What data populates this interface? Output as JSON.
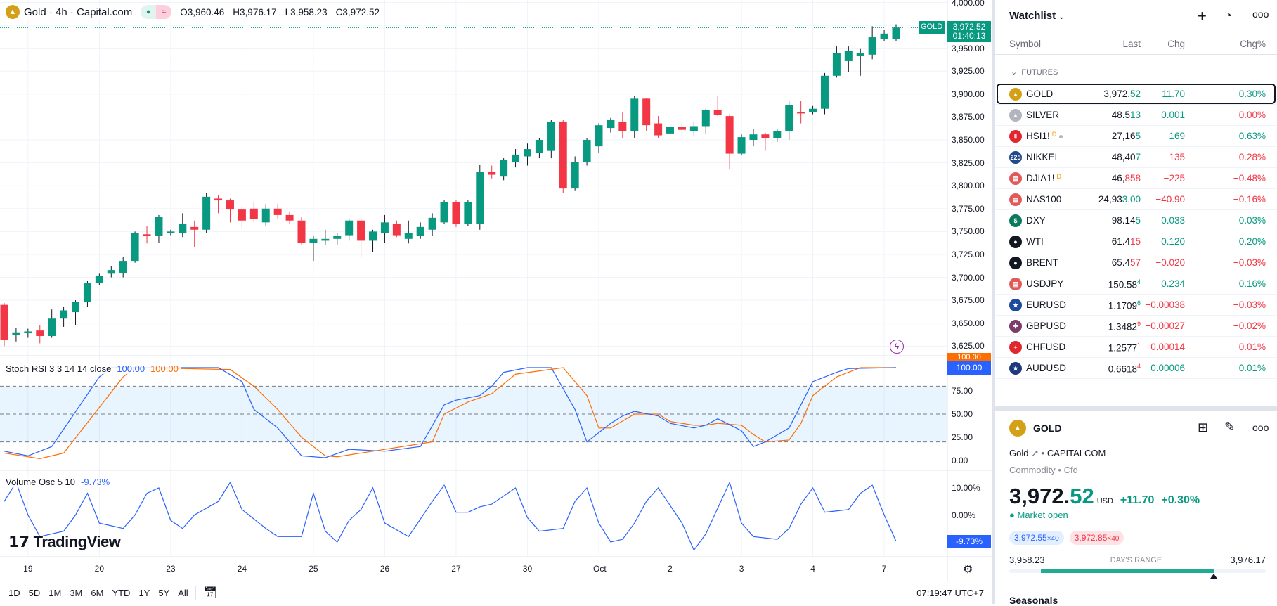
{
  "legend": {
    "symbol": "Gold · 4h · Capital.com",
    "open": "O3,960.46",
    "high": "H3,976.17",
    "low": "L3,958.23",
    "close": "C3,972.52"
  },
  "price_axis": [
    "4,000.00",
    "3,975.00",
    "3,950.00",
    "3,925.00",
    "3,900.00",
    "3,875.00",
    "3,850.00",
    "3,825.00",
    "3,800.00",
    "3,775.00",
    "3,750.00",
    "3,725.00",
    "3,700.00",
    "3,675.00",
    "3,650.00",
    "3,625.00"
  ],
  "last_tag": {
    "symbol": "GOLD",
    "price": "3,972.52",
    "countdown": "01:40:13"
  },
  "stoch": {
    "title": "Stoch RSI 3 3 14 14 close",
    "k_value": "100.00",
    "d_value": "100.00",
    "axis": [
      "75.00",
      "50.00",
      "25.00",
      "0.00"
    ],
    "tag_k": "100.00",
    "tag_d": "100.00"
  },
  "volosc": {
    "title": "Volume Osc 5 10",
    "value": "-9.73%",
    "axis": [
      "10.00%",
      "0.00%"
    ],
    "tag": "-9.73%"
  },
  "brand": "TradingView",
  "date_axis": [
    {
      "label": "19",
      "bar": 2
    },
    {
      "label": "20",
      "bar": 8
    },
    {
      "label": "23",
      "bar": 14
    },
    {
      "label": "24",
      "bar": 20
    },
    {
      "label": "25",
      "bar": 26
    },
    {
      "label": "26",
      "bar": 32
    },
    {
      "label": "27",
      "bar": 38
    },
    {
      "label": "30",
      "bar": 44
    },
    {
      "label": "Oct",
      "bar": 50
    },
    {
      "label": "2",
      "bar": 56
    },
    {
      "label": "3",
      "bar": 62
    },
    {
      "label": "4",
      "bar": 68
    },
    {
      "label": "7",
      "bar": 74
    }
  ],
  "bottom": {
    "ranges": [
      "1D",
      "5D",
      "1M",
      "3M",
      "6M",
      "YTD",
      "1Y",
      "5Y",
      "All"
    ],
    "time": "07:19:47 UTC+7"
  },
  "colors": {
    "up": "#089981",
    "down": "#f23645",
    "k": "#2962ff",
    "d": "#ff6d00",
    "vol": "#2962ff"
  },
  "chart_data": {
    "type": "candlestick",
    "ylim": [
      3625,
      4000
    ],
    "ohlc": [
      [
        3670,
        3672,
        3625,
        3632
      ],
      [
        3637,
        3645,
        3630,
        3640
      ],
      [
        3639,
        3644,
        3634,
        3641
      ],
      [
        3642,
        3648,
        3628,
        3636
      ],
      [
        3636,
        3665,
        3634,
        3655
      ],
      [
        3655,
        3668,
        3646,
        3664
      ],
      [
        3662,
        3675,
        3648,
        3673
      ],
      [
        3673,
        3696,
        3668,
        3694
      ],
      [
        3694,
        3704,
        3692,
        3702
      ],
      [
        3704,
        3712,
        3700,
        3708
      ],
      [
        3705,
        3722,
        3700,
        3718
      ],
      [
        3718,
        3750,
        3716,
        3748
      ],
      [
        3747,
        3756,
        3737,
        3745
      ],
      [
        3745,
        3768,
        3738,
        3766
      ],
      [
        3748,
        3752,
        3746,
        3750
      ],
      [
        3748,
        3770,
        3744,
        3758
      ],
      [
        3755,
        3762,
        3733,
        3752
      ],
      [
        3752,
        3792,
        3748,
        3788
      ],
      [
        3786,
        3790,
        3770,
        3784
      ],
      [
        3784,
        3786,
        3760,
        3774
      ],
      [
        3774,
        3778,
        3754,
        3762
      ],
      [
        3775,
        3782,
        3760,
        3764
      ],
      [
        3760,
        3780,
        3756,
        3775
      ],
      [
        3775,
        3780,
        3764,
        3768
      ],
      [
        3768,
        3772,
        3758,
        3762
      ],
      [
        3762,
        3766,
        3736,
        3738
      ],
      [
        3738,
        3745,
        3718,
        3742
      ],
      [
        3740,
        3752,
        3735,
        3742
      ],
      [
        3742,
        3748,
        3735,
        3745
      ],
      [
        3746,
        3764,
        3740,
        3762
      ],
      [
        3762,
        3766,
        3722,
        3740
      ],
      [
        3740,
        3752,
        3728,
        3750
      ],
      [
        3748,
        3768,
        3738,
        3760
      ],
      [
        3758,
        3762,
        3744,
        3746
      ],
      [
        3742,
        3762,
        3737,
        3748
      ],
      [
        3745,
        3760,
        3742,
        3755
      ],
      [
        3752,
        3770,
        3745,
        3765
      ],
      [
        3760,
        3784,
        3758,
        3782
      ],
      [
        3782,
        3784,
        3755,
        3758
      ],
      [
        3758,
        3784,
        3756,
        3782
      ],
      [
        3758,
        3823,
        3752,
        3815
      ],
      [
        3815,
        3822,
        3808,
        3812
      ],
      [
        3810,
        3830,
        3806,
        3828
      ],
      [
        3826,
        3840,
        3820,
        3834
      ],
      [
        3832,
        3846,
        3822,
        3840
      ],
      [
        3836,
        3852,
        3830,
        3850
      ],
      [
        3838,
        3872,
        3830,
        3870
      ],
      [
        3870,
        3872,
        3792,
        3797
      ],
      [
        3797,
        3832,
        3795,
        3826
      ],
      [
        3826,
        3852,
        3822,
        3850
      ],
      [
        3843,
        3868,
        3836,
        3866
      ],
      [
        3863,
        3874,
        3858,
        3872
      ],
      [
        3870,
        3880,
        3852,
        3860
      ],
      [
        3860,
        3898,
        3852,
        3895
      ],
      [
        3895,
        3896,
        3860,
        3866
      ],
      [
        3868,
        3876,
        3852,
        3855
      ],
      [
        3857,
        3870,
        3852,
        3864
      ],
      [
        3864,
        3870,
        3850,
        3861
      ],
      [
        3860,
        3870,
        3855,
        3865
      ],
      [
        3865,
        3884,
        3856,
        3883
      ],
      [
        3883,
        3898,
        3876,
        3877
      ],
      [
        3876,
        3878,
        3818,
        3835
      ],
      [
        3835,
        3856,
        3833,
        3853
      ],
      [
        3850,
        3862,
        3843,
        3856
      ],
      [
        3856,
        3858,
        3838,
        3852
      ],
      [
        3852,
        3862,
        3848,
        3860
      ],
      [
        3860,
        3893,
        3850,
        3888
      ],
      [
        3880,
        3893,
        3868,
        3879
      ],
      [
        3880,
        3887,
        3878,
        3884
      ],
      [
        3884,
        3923,
        3878,
        3920
      ],
      [
        3920,
        3952,
        3918,
        3945
      ],
      [
        3936,
        3952,
        3924,
        3947
      ],
      [
        3942,
        3950,
        3920,
        3945
      ],
      [
        3943,
        3974,
        3938,
        3962
      ],
      [
        3960,
        3970,
        3958,
        3966
      ],
      [
        3960.46,
        3976.17,
        3958.23,
        3972.52
      ]
    ],
    "stoch_k": [
      [
        0,
        10
      ],
      [
        2,
        5
      ],
      [
        4,
        15
      ],
      [
        8,
        90
      ],
      [
        9,
        100
      ],
      [
        18,
        100
      ],
      [
        20,
        85
      ],
      [
        21,
        55
      ],
      [
        23,
        35
      ],
      [
        25,
        5
      ],
      [
        27,
        3
      ],
      [
        29,
        12
      ],
      [
        32,
        10
      ],
      [
        35,
        15
      ],
      [
        37,
        60
      ],
      [
        38,
        65
      ],
      [
        40,
        70
      ],
      [
        41,
        80
      ],
      [
        42,
        95
      ],
      [
        44,
        100
      ],
      [
        46,
        100
      ],
      [
        48,
        55
      ],
      [
        49,
        20
      ],
      [
        51,
        40
      ],
      [
        52,
        48
      ],
      [
        53,
        53
      ],
      [
        55,
        48
      ],
      [
        56,
        40
      ],
      [
        58,
        35
      ],
      [
        59,
        38
      ],
      [
        60,
        45
      ],
      [
        62,
        32
      ],
      [
        63,
        15
      ],
      [
        64,
        20
      ],
      [
        66,
        35
      ],
      [
        67,
        60
      ],
      [
        68,
        85
      ],
      [
        70,
        95
      ],
      [
        71,
        99
      ],
      [
        75,
        100
      ]
    ],
    "stoch_d": [
      [
        0,
        8
      ],
      [
        3,
        2
      ],
      [
        5,
        8
      ],
      [
        10,
        90
      ],
      [
        11,
        100
      ],
      [
        19,
        98
      ],
      [
        21,
        80
      ],
      [
        23,
        55
      ],
      [
        25,
        25
      ],
      [
        27,
        5
      ],
      [
        28,
        4
      ],
      [
        30,
        8
      ],
      [
        32,
        12
      ],
      [
        36,
        20
      ],
      [
        37,
        50
      ],
      [
        39,
        63
      ],
      [
        41,
        72
      ],
      [
        43,
        93
      ],
      [
        47,
        100
      ],
      [
        49,
        70
      ],
      [
        50,
        35
      ],
      [
        51,
        35
      ],
      [
        53,
        50
      ],
      [
        55,
        50
      ],
      [
        56,
        42
      ],
      [
        58,
        38
      ],
      [
        59,
        38
      ],
      [
        60,
        40
      ],
      [
        62,
        38
      ],
      [
        63,
        28
      ],
      [
        64,
        20
      ],
      [
        66,
        22
      ],
      [
        67,
        40
      ],
      [
        68,
        70
      ],
      [
        70,
        90
      ],
      [
        72,
        100
      ],
      [
        75,
        100
      ]
    ],
    "stoch_bands": [
      20,
      50,
      80
    ],
    "volume_osc": [
      [
        0,
        5
      ],
      [
        1,
        12
      ],
      [
        2,
        0
      ],
      [
        3,
        -8
      ],
      [
        5,
        -6
      ],
      [
        6,
        0
      ],
      [
        7,
        8
      ],
      [
        8,
        -3
      ],
      [
        10,
        -5
      ],
      [
        11,
        0
      ],
      [
        12,
        8
      ],
      [
        13,
        10
      ],
      [
        14,
        -2
      ],
      [
        15,
        -5
      ],
      [
        16,
        0
      ],
      [
        18,
        5
      ],
      [
        19,
        12
      ],
      [
        20,
        2
      ],
      [
        22,
        -5
      ],
      [
        23,
        -8
      ],
      [
        25,
        -8
      ],
      [
        26,
        8
      ],
      [
        27,
        -6
      ],
      [
        28,
        -10
      ],
      [
        29,
        -2
      ],
      [
        30,
        2
      ],
      [
        31,
        10
      ],
      [
        32,
        -3
      ],
      [
        34,
        -8
      ],
      [
        36,
        5
      ],
      [
        37,
        11
      ],
      [
        38,
        1
      ],
      [
        39,
        1
      ],
      [
        40,
        3
      ],
      [
        41,
        4
      ],
      [
        43,
        10
      ],
      [
        44,
        -1
      ],
      [
        45,
        -6
      ],
      [
        47,
        -5
      ],
      [
        48,
        5
      ],
      [
        49,
        10
      ],
      [
        50,
        -3
      ],
      [
        51,
        -10
      ],
      [
        52,
        -9
      ],
      [
        53,
        -3
      ],
      [
        54,
        5
      ],
      [
        55,
        10
      ],
      [
        57,
        -3
      ],
      [
        58,
        -13
      ],
      [
        59,
        -7
      ],
      [
        61,
        12
      ],
      [
        62,
        -3
      ],
      [
        63,
        -8
      ],
      [
        65,
        -9
      ],
      [
        66,
        -5
      ],
      [
        67,
        4
      ],
      [
        68,
        10
      ],
      [
        69,
        1
      ],
      [
        70,
        1.5
      ],
      [
        71,
        2
      ],
      [
        72,
        8
      ],
      [
        73,
        11
      ],
      [
        74,
        0
      ],
      [
        75,
        -9.73
      ]
    ]
  },
  "watchlist": {
    "title": "Watchlist",
    "columns": {
      "symbol": "Symbol",
      "last": "Last",
      "chg": "Chg",
      "pct": "Chg%"
    },
    "group": "FUTURES",
    "rows": [
      {
        "name": "GOLD",
        "icon": "gold-bar",
        "icon_bg": "#d4a017",
        "icon_text": "▲",
        "main": "3,972.",
        "tail": "52",
        "tail_dir": "up",
        "sup": false,
        "chg": "11.70",
        "pct": "0.30%",
        "chg_dir": "up",
        "pct_dir": "up",
        "selected": true
      },
      {
        "name": "SILVER",
        "icon": "silver-bar",
        "icon_bg": "#b2b5be",
        "icon_text": "▲",
        "main": "48.5",
        "tail": "13",
        "tail_dir": "up",
        "sup": false,
        "chg": "0.001",
        "pct": "0.00%",
        "chg_dir": "up",
        "pct_dir": "dn"
      },
      {
        "name": "HSI1!",
        "icon": "hsi",
        "icon_bg": "#e0262f",
        "icon_text": "Ⅱ",
        "main": "27,16",
        "tail": "5",
        "tail_dir": "up",
        "sup": false,
        "chg": "169",
        "pct": "0.63%",
        "chg_dir": "up",
        "pct_dir": "up",
        "badge": "D",
        "dot": true
      },
      {
        "name": "NIKKEI",
        "icon": "nikkei",
        "icon_bg": "#1e4a8c",
        "icon_text": "225",
        "main": "48,40",
        "tail": "7",
        "tail_dir": "up",
        "sup": false,
        "chg": "−135",
        "pct": "−0.28%",
        "chg_dir": "dn",
        "pct_dir": "dn"
      },
      {
        "name": "DJIA1!",
        "icon": "us-flag",
        "icon_bg": "#e05a5a",
        "icon_text": "▤",
        "main": "46,",
        "tail": "858",
        "tail_dir": "dn",
        "sup": false,
        "chg": "−225",
        "pct": "−0.48%",
        "chg_dir": "dn",
        "pct_dir": "dn",
        "badge": "D"
      },
      {
        "name": "NAS100",
        "icon": "us-flag",
        "icon_bg": "#e05a5a",
        "icon_text": "▤",
        "main": "24,93",
        "tail": "3.00",
        "tail_dir": "up",
        "sup": false,
        "chg": "−40.90",
        "pct": "−0.16%",
        "chg_dir": "dn",
        "pct_dir": "dn"
      },
      {
        "name": "DXY",
        "icon": "dollar",
        "icon_bg": "#0b7a5e",
        "icon_text": "$",
        "main": "98.14",
        "tail": "5",
        "tail_dir": "up",
        "sup": false,
        "chg": "0.033",
        "pct": "0.03%",
        "chg_dir": "up",
        "pct_dir": "up"
      },
      {
        "name": "WTI",
        "icon": "oil-drop",
        "icon_bg": "#131722",
        "icon_text": "●",
        "main": "61.4",
        "tail": "15",
        "tail_dir": "dn",
        "sup": false,
        "chg": "0.120",
        "pct": "0.20%",
        "chg_dir": "up",
        "pct_dir": "up"
      },
      {
        "name": "BRENT",
        "icon": "oil-drop",
        "icon_bg": "#131722",
        "icon_text": "●",
        "main": "65.4",
        "tail": "57",
        "tail_dir": "dn",
        "sup": false,
        "chg": "−0.020",
        "pct": "−0.03%",
        "chg_dir": "dn",
        "pct_dir": "dn"
      },
      {
        "name": "USDJPY",
        "icon": "us-jp-flag",
        "icon_bg": "#e05a5a",
        "icon_text": "▤",
        "main": "150.58",
        "tail": "4",
        "tail_dir": "up",
        "sup": true,
        "chg": "0.234",
        "pct": "0.16%",
        "chg_dir": "up",
        "pct_dir": "up"
      },
      {
        "name": "EURUSD",
        "icon": "eu-us-flag",
        "icon_bg": "#1e4a9c",
        "icon_text": "★",
        "main": "1.1709",
        "tail": "6",
        "tail_dir": "up",
        "sup": true,
        "chg": "−0.00038",
        "pct": "−0.03%",
        "chg_dir": "dn",
        "pct_dir": "dn"
      },
      {
        "name": "GBPUSD",
        "icon": "gb-us-flag",
        "icon_bg": "#7b3b6b",
        "icon_text": "✚",
        "main": "1.3482",
        "tail": "9",
        "tail_dir": "dn",
        "sup": true,
        "chg": "−0.00027",
        "pct": "−0.02%",
        "chg_dir": "dn",
        "pct_dir": "dn"
      },
      {
        "name": "CHFUSD",
        "icon": "ch-us-flag",
        "icon_bg": "#e0262f",
        "icon_text": "+",
        "main": "1.2577",
        "tail": "1",
        "tail_dir": "dn",
        "sup": true,
        "chg": "−0.00014",
        "pct": "−0.01%",
        "chg_dir": "dn",
        "pct_dir": "dn"
      },
      {
        "name": "AUDUSD",
        "icon": "au-us-flag",
        "icon_bg": "#1e3a7c",
        "icon_text": "★",
        "main": "0.6618",
        "tail": "4",
        "tail_dir": "dn",
        "sup": true,
        "chg": "0.00006",
        "pct": "0.01%",
        "chg_dir": "up",
        "pct_dir": "up"
      }
    ]
  },
  "details": {
    "symbol": "GOLD",
    "name": "Gold",
    "exchange": "CAPITALCOM",
    "category": "Commodity",
    "type": "Cfd",
    "price_main": "3,972.",
    "price_tail": "52",
    "currency": "USD",
    "change": "+11.70",
    "change_pct": "+0.30%",
    "market_status": "Market open",
    "bid": "3,972.55",
    "bid_size": "×40",
    "ask": "3,972.85",
    "ask_size": "×40",
    "range_low": "3,958.23",
    "range_high": "3,976.17",
    "range_label": "DAY'S RANGE",
    "range_open_frac": 0.124,
    "range_current_frac": 0.797,
    "next_section": "Seasonals"
  }
}
